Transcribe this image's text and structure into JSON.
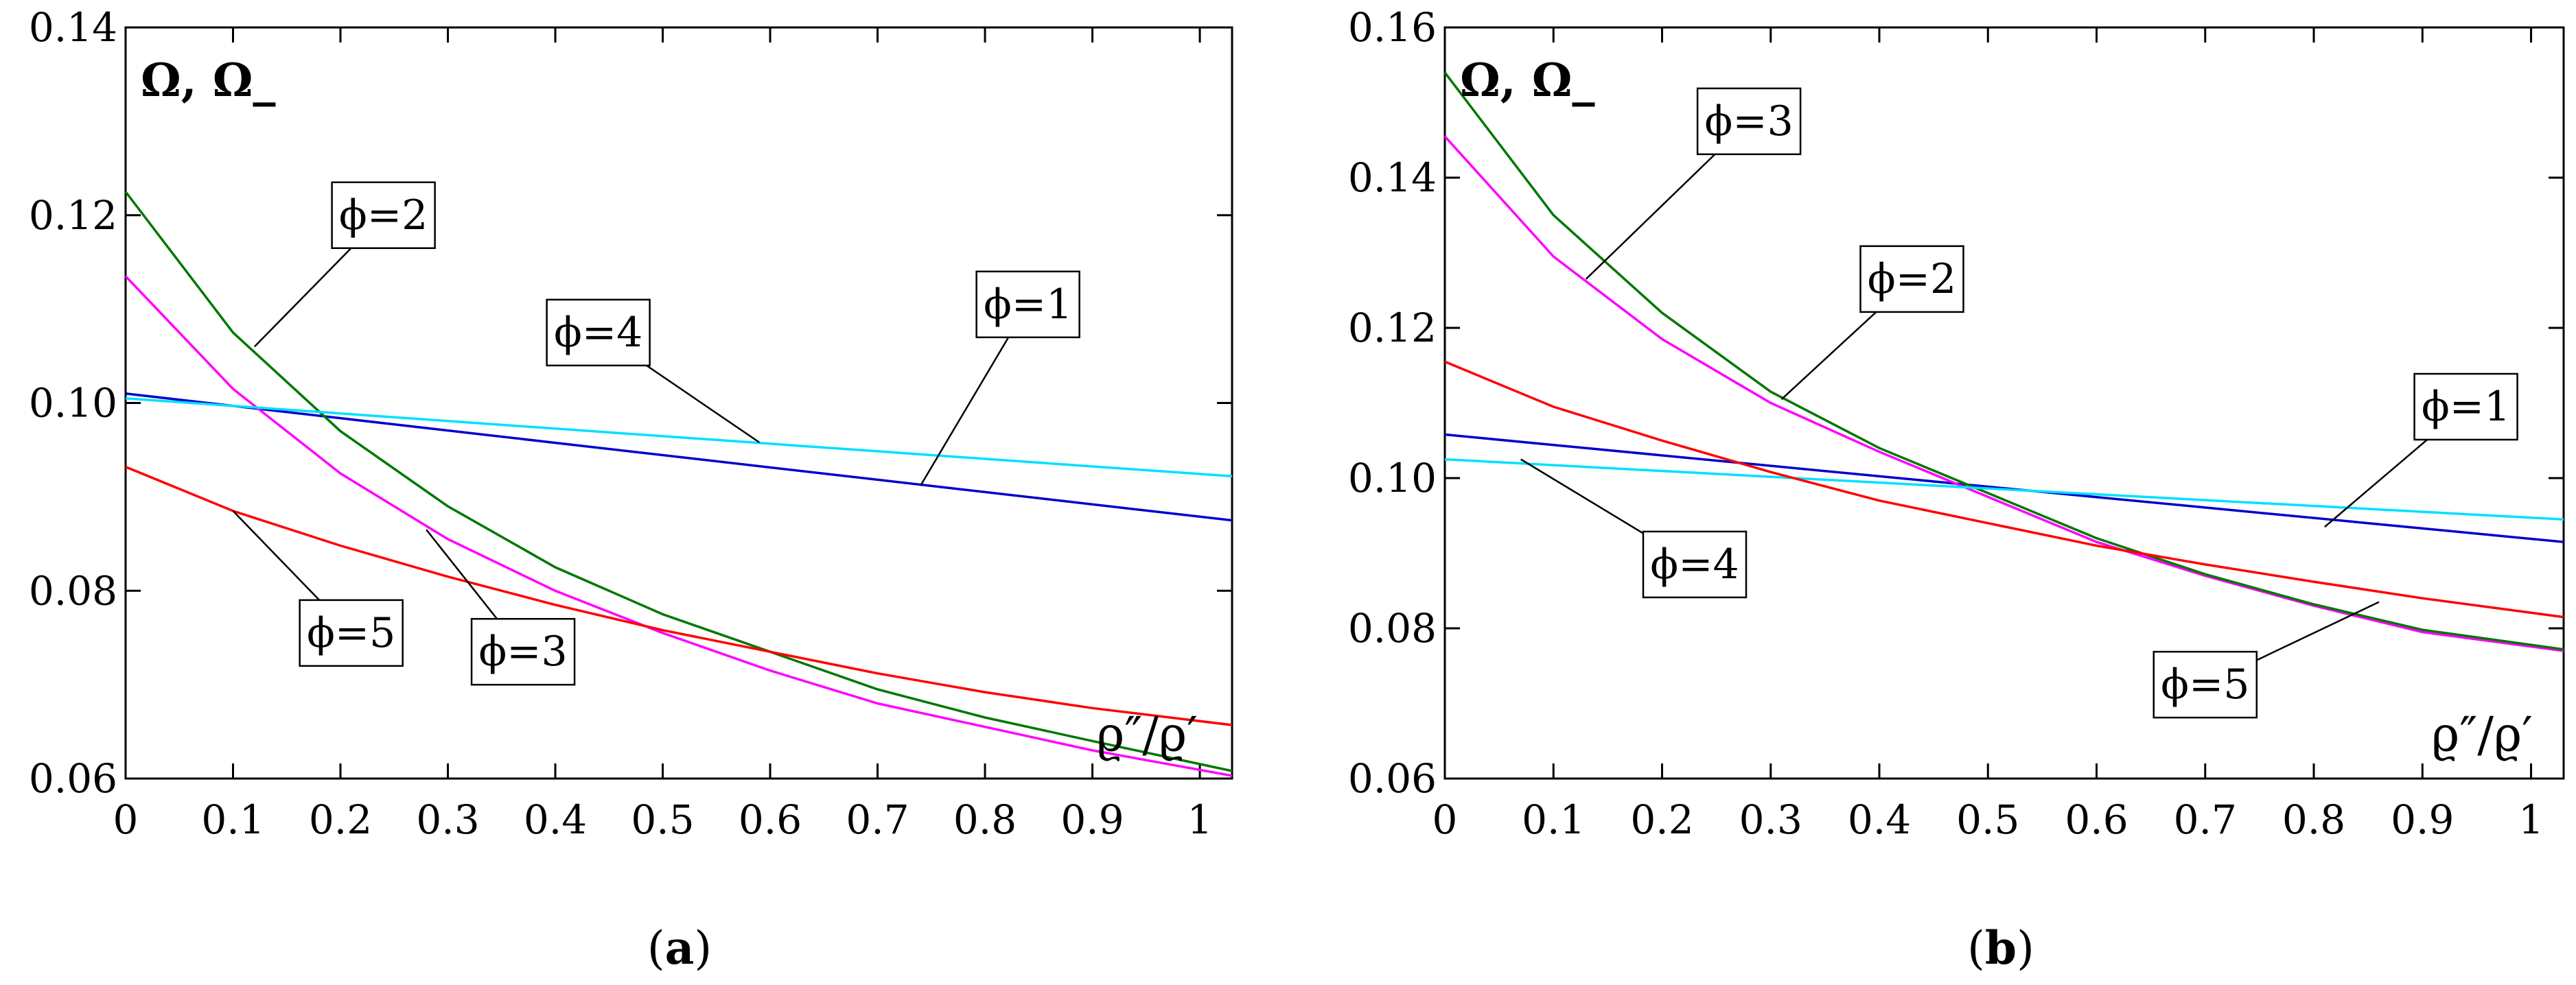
{
  "chart_data": [
    {
      "panel": "a",
      "caption_open": "(",
      "caption_letter": "a",
      "caption_close": ")",
      "type": "line",
      "ylabel": "Ω, Ω_",
      "xlabel": "ϱ″/ϱ′",
      "xlim": [
        0,
        1.03
      ],
      "ylim": [
        0.06,
        0.14
      ],
      "xticks": [
        0,
        0.1,
        0.2,
        0.3,
        0.4,
        0.5,
        0.6,
        0.7,
        0.8,
        0.9,
        1
      ],
      "xtick_labels": [
        "0",
        "0.1",
        "0.2",
        "0.3",
        "0.4",
        "0.5",
        "0.6",
        "0.7",
        "0.8",
        "0.9",
        "1"
      ],
      "yticks": [
        0.06,
        0.08,
        0.1,
        0.12,
        0.14
      ],
      "ytick_labels": [
        "0.06",
        "0.08",
        "0.10",
        "0.12",
        "0.14"
      ],
      "series": [
        {
          "name": "ϕ=1",
          "color": "#0000cc",
          "x": [
            0,
            1.03
          ],
          "y": [
            0.101,
            0.0875
          ]
        },
        {
          "name": "ϕ=2",
          "color": "#007700",
          "x": [
            0,
            0.1,
            0.2,
            0.3,
            0.4,
            0.5,
            0.6,
            0.7,
            0.8,
            0.9,
            1.03
          ],
          "y": [
            0.1225,
            0.1075,
            0.097,
            0.089,
            0.0825,
            0.0775,
            0.0735,
            0.0695,
            0.0665,
            0.064,
            0.0608
          ]
        },
        {
          "name": "ϕ=3",
          "color": "#ff00ff",
          "x": [
            0,
            0.1,
            0.2,
            0.3,
            0.4,
            0.5,
            0.6,
            0.7,
            0.8,
            0.9,
            1.03
          ],
          "y": [
            0.1135,
            0.1015,
            0.0925,
            0.0855,
            0.08,
            0.0755,
            0.0715,
            0.068,
            0.0655,
            0.063,
            0.0603
          ]
        },
        {
          "name": "ϕ=4",
          "color": "#00e0ff",
          "x": [
            0,
            1.03
          ],
          "y": [
            0.1005,
            0.0922
          ]
        },
        {
          "name": "ϕ=5",
          "color": "#ff0000",
          "x": [
            0,
            0.1,
            0.2,
            0.3,
            0.4,
            0.5,
            0.6,
            0.7,
            0.8,
            0.9,
            1.03
          ],
          "y": [
            0.0932,
            0.0885,
            0.0848,
            0.0815,
            0.0785,
            0.0758,
            0.0735,
            0.0712,
            0.0692,
            0.0675,
            0.0657
          ]
        }
      ],
      "annotations": [
        {
          "text": "ϕ=2",
          "at": [
            0.24,
            0.12
          ],
          "points_to": [
            0.12,
            0.106
          ]
        },
        {
          "text": "ϕ=4",
          "at": [
            0.44,
            0.1075
          ],
          "points_to": [
            0.59,
            0.0958
          ]
        },
        {
          "text": "ϕ=1",
          "at": [
            0.84,
            0.1105
          ],
          "points_to": [
            0.74,
            0.0912
          ]
        },
        {
          "text": "ϕ=5",
          "at": [
            0.21,
            0.0755
          ],
          "points_to": [
            0.1,
            0.0885
          ]
        },
        {
          "text": "ϕ=3",
          "at": [
            0.37,
            0.0735
          ],
          "points_to": [
            0.28,
            0.0865
          ]
        }
      ]
    },
    {
      "panel": "b",
      "caption_open": "(",
      "caption_letter": "b",
      "caption_close": ")",
      "type": "line",
      "ylabel": "Ω, Ω_",
      "xlabel": "ϱ″/ϱ′",
      "xlim": [
        0,
        1.03
      ],
      "ylim": [
        0.06,
        0.16
      ],
      "xticks": [
        0,
        0.1,
        0.2,
        0.3,
        0.4,
        0.5,
        0.6,
        0.7,
        0.8,
        0.9,
        1
      ],
      "xtick_labels": [
        "0",
        "0.1",
        "0.2",
        "0.3",
        "0.4",
        "0.5",
        "0.6",
        "0.7",
        "0.8",
        "0.9",
        "1"
      ],
      "yticks": [
        0.06,
        0.08,
        0.1,
        0.12,
        0.14,
        0.16
      ],
      "ytick_labels": [
        "0.06",
        "0.08",
        "0.10",
        "0.12",
        "0.14",
        "0.16"
      ],
      "series": [
        {
          "name": "ϕ=1",
          "color": "#0000cc",
          "x": [
            0,
            1.03
          ],
          "y": [
            0.1058,
            0.0915
          ]
        },
        {
          "name": "ϕ=2",
          "color": "#ff00ff",
          "x": [
            0,
            0.1,
            0.2,
            0.3,
            0.4,
            0.5,
            0.6,
            0.7,
            0.8,
            0.9,
            1.03
          ],
          "y": [
            0.1455,
            0.1295,
            0.1185,
            0.11,
            0.1035,
            0.0975,
            0.0915,
            0.087,
            0.083,
            0.0795,
            0.077
          ]
        },
        {
          "name": "ϕ=3",
          "color": "#007700",
          "x": [
            0,
            0.1,
            0.2,
            0.3,
            0.4,
            0.5,
            0.6,
            0.7,
            0.8,
            0.9,
            1.03
          ],
          "y": [
            0.154,
            0.135,
            0.122,
            0.1115,
            0.104,
            0.098,
            0.092,
            0.0872,
            0.0832,
            0.0798,
            0.0772
          ]
        },
        {
          "name": "ϕ=4",
          "color": "#00e0ff",
          "x": [
            0,
            1.03
          ],
          "y": [
            0.1025,
            0.0945
          ]
        },
        {
          "name": "ϕ=5",
          "color": "#ff0000",
          "x": [
            0,
            0.1,
            0.2,
            0.3,
            0.4,
            0.5,
            0.6,
            0.7,
            0.8,
            0.9,
            1.03
          ],
          "y": [
            0.1155,
            0.1095,
            0.105,
            0.1008,
            0.097,
            0.094,
            0.091,
            0.0885,
            0.0862,
            0.084,
            0.0815
          ]
        }
      ],
      "annotations": [
        {
          "text": "ϕ=3",
          "at": [
            0.28,
            0.1475
          ],
          "points_to": [
            0.13,
            0.1265
          ]
        },
        {
          "text": "ϕ=2",
          "at": [
            0.43,
            0.1265
          ],
          "points_to": [
            0.31,
            0.1105
          ]
        },
        {
          "text": "ϕ=1",
          "at": [
            0.94,
            0.1095
          ],
          "points_to": [
            0.81,
            0.0935
          ]
        },
        {
          "text": "ϕ=4",
          "at": [
            0.23,
            0.0885
          ],
          "points_to": [
            0.07,
            0.1025
          ]
        },
        {
          "text": "ϕ=5",
          "at": [
            0.7,
            0.0725
          ],
          "points_to": [
            0.86,
            0.0835
          ]
        }
      ]
    }
  ]
}
